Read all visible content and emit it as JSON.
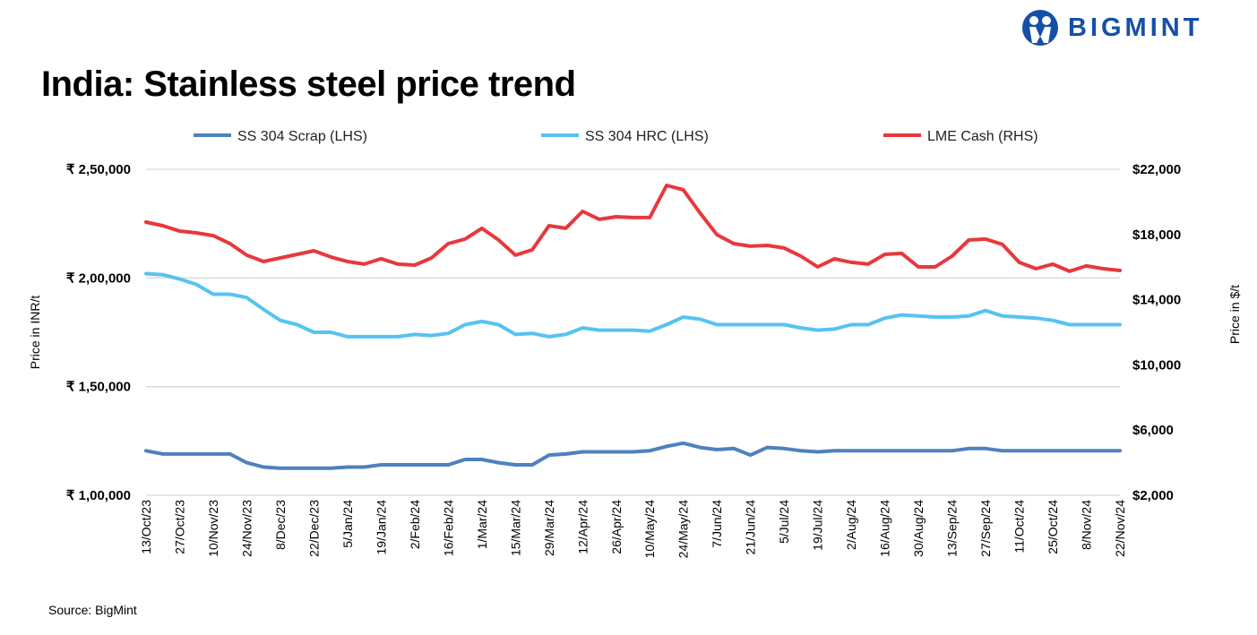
{
  "logo": {
    "text": "BIGMINT",
    "color": "#1550a8"
  },
  "title": "India: Stainless steel price trend",
  "source": "Source: BigMint",
  "chart_data": {
    "type": "line",
    "title": "India: Stainless steel price trend",
    "ylabel": "Price in INR/t",
    "y2label": "Price in $/t",
    "ylim": [
      100000,
      250000
    ],
    "y2lim": [
      2000,
      22000
    ],
    "yticks": [
      "₹ 1,00,000",
      "₹ 1,50,000",
      "₹ 2,00,000",
      "₹ 2,50,000"
    ],
    "y2ticks": [
      "$2,000",
      "$6,000",
      "$10,000",
      "$14,000",
      "$18,000",
      "$22,000"
    ],
    "xticks": [
      "13/Oct/23",
      "27/Oct/23",
      "10/Nov/23",
      "24/Nov/23",
      "8/Dec/23",
      "22/Dec/23",
      "5/Jan/24",
      "19/Jan/24",
      "2/Feb/24",
      "16/Feb/24",
      "1/Mar/24",
      "15/Mar/24",
      "29/Mar/24",
      "12/Apr/24",
      "26/Apr/24",
      "10/May/24",
      "24/May/24",
      "7/Jun/24",
      "21/Jun/24",
      "5/Jul/24",
      "19/Jul/24",
      "2/Aug/24",
      "16/Aug/24",
      "30/Aug/24",
      "13/Sep/24",
      "27/Sep/24",
      "11/Oct/24",
      "25/Oct/24",
      "8/Nov/24",
      "22/Nov/24"
    ],
    "grid": true,
    "legend": "top",
    "x": [
      "2023-10-13",
      "2023-10-20",
      "2023-10-27",
      "2023-11-03",
      "2023-11-10",
      "2023-11-17",
      "2023-11-24",
      "2023-12-01",
      "2023-12-08",
      "2023-12-15",
      "2023-12-22",
      "2023-12-29",
      "2024-01-05",
      "2024-01-12",
      "2024-01-19",
      "2024-01-26",
      "2024-02-02",
      "2024-02-09",
      "2024-02-16",
      "2024-02-23",
      "2024-03-01",
      "2024-03-08",
      "2024-03-15",
      "2024-03-22",
      "2024-03-29",
      "2024-04-05",
      "2024-04-12",
      "2024-04-19",
      "2024-04-26",
      "2024-05-03",
      "2024-05-10",
      "2024-05-17",
      "2024-05-24",
      "2024-05-31",
      "2024-06-07",
      "2024-06-14",
      "2024-06-21",
      "2024-06-28",
      "2024-07-05",
      "2024-07-12",
      "2024-07-19",
      "2024-07-26",
      "2024-08-02",
      "2024-08-09",
      "2024-08-16",
      "2024-08-23",
      "2024-08-30",
      "2024-09-06",
      "2024-09-13",
      "2024-09-20",
      "2024-09-27",
      "2024-10-04",
      "2024-10-11",
      "2024-10-18",
      "2024-10-25",
      "2024-11-01",
      "2024-11-08",
      "2024-11-15",
      "2024-11-22"
    ],
    "series": [
      {
        "name": "SS 304 Scrap (LHS)",
        "axis": "left",
        "color": "#4f81bd",
        "values": [
          120500,
          119000,
          119000,
          119000,
          119000,
          119000,
          115000,
          113000,
          112500,
          112500,
          112500,
          112500,
          113000,
          113000,
          114000,
          114000,
          114000,
          114000,
          114000,
          116500,
          116500,
          115000,
          114000,
          114000,
          118500,
          119000,
          120000,
          120000,
          120000,
          120000,
          120500,
          122500,
          124000,
          122000,
          121000,
          121500,
          118500,
          122000,
          121500,
          120500,
          120000,
          120500,
          120500,
          120500,
          120500,
          120500,
          120500,
          120500,
          120500,
          121500,
          121500,
          120500,
          120500,
          120500,
          120500,
          120500,
          120500,
          120500,
          120500
        ]
      },
      {
        "name": "SS 304 HRC (LHS)",
        "axis": "left",
        "color": "#56c3f0",
        "values": [
          202000,
          201500,
          199500,
          197000,
          192500,
          192500,
          191000,
          185500,
          180500,
          178500,
          175000,
          175000,
          173000,
          173000,
          173000,
          173000,
          174000,
          173500,
          174500,
          178500,
          180000,
          178500,
          174000,
          174500,
          173000,
          174000,
          177000,
          176000,
          176000,
          176000,
          175500,
          178500,
          182000,
          181000,
          178500,
          178500,
          178500,
          178500,
          178500,
          177000,
          176000,
          176500,
          178500,
          178500,
          181500,
          183000,
          182500,
          182000,
          182000,
          182500,
          185000,
          182500,
          182000,
          181500,
          180500,
          178500,
          178500,
          178500,
          178500
        ]
      },
      {
        "name": "LME Cash (RHS)",
        "axis": "right",
        "color": "#e8383b",
        "values": [
          18760,
          18540,
          18210,
          18100,
          17930,
          17440,
          16730,
          16340,
          16560,
          16780,
          17000,
          16620,
          16340,
          16180,
          16510,
          16180,
          16120,
          16560,
          17440,
          17720,
          18380,
          17660,
          16730,
          17060,
          18540,
          18380,
          19420,
          18930,
          19090,
          19040,
          19040,
          21010,
          20740,
          19310,
          17990,
          17440,
          17280,
          17330,
          17170,
          16670,
          16010,
          16510,
          16290,
          16180,
          16780,
          16840,
          16010,
          16010,
          16670,
          17660,
          17720,
          17390,
          16290,
          15900,
          16180,
          15740,
          16070,
          15900,
          15790
        ]
      }
    ]
  }
}
